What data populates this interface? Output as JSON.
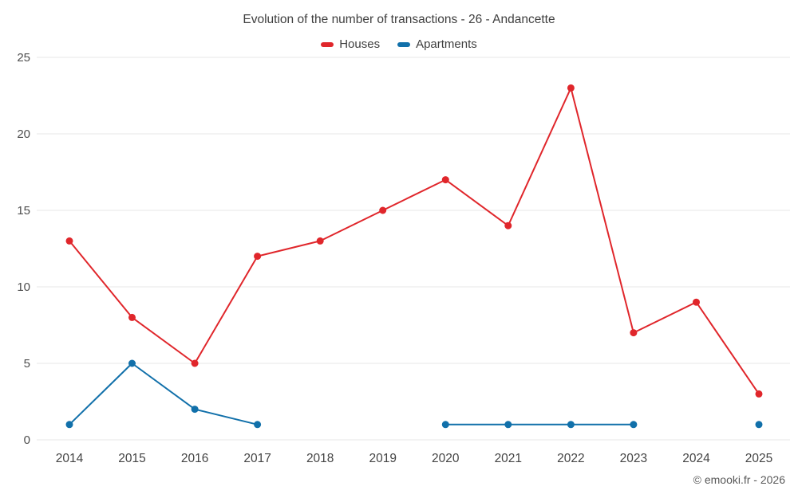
{
  "header": {
    "title": "Evolution of the number of transactions - 26 - Andancette"
  },
  "legend": [
    {
      "label": "Houses",
      "color": "#e0262b"
    },
    {
      "label": "Apartments",
      "color": "#1170aa"
    }
  ],
  "footer": {
    "credit": "© emooki.fr - 2026"
  },
  "chart_data": {
    "type": "line",
    "title": "Evolution of the number of transactions - 26 - Andancette",
    "x": [
      2014,
      2015,
      2016,
      2017,
      2018,
      2019,
      2020,
      2021,
      2022,
      2023,
      2024,
      2025
    ],
    "series": [
      {
        "name": "Houses",
        "color": "#e0262b",
        "values": [
          13,
          8,
          5,
          12,
          13,
          15,
          17,
          14,
          23,
          7,
          9,
          3
        ]
      },
      {
        "name": "Apartments",
        "color": "#1170aa",
        "values": [
          1,
          5,
          2,
          1,
          null,
          null,
          1,
          1,
          1,
          1,
          null,
          1
        ]
      }
    ],
    "ylim": [
      0,
      25
    ],
    "yticks": [
      0,
      5,
      10,
      15,
      20,
      25
    ],
    "grid": true,
    "legend_position": "top",
    "xlabel": "",
    "ylabel": ""
  }
}
